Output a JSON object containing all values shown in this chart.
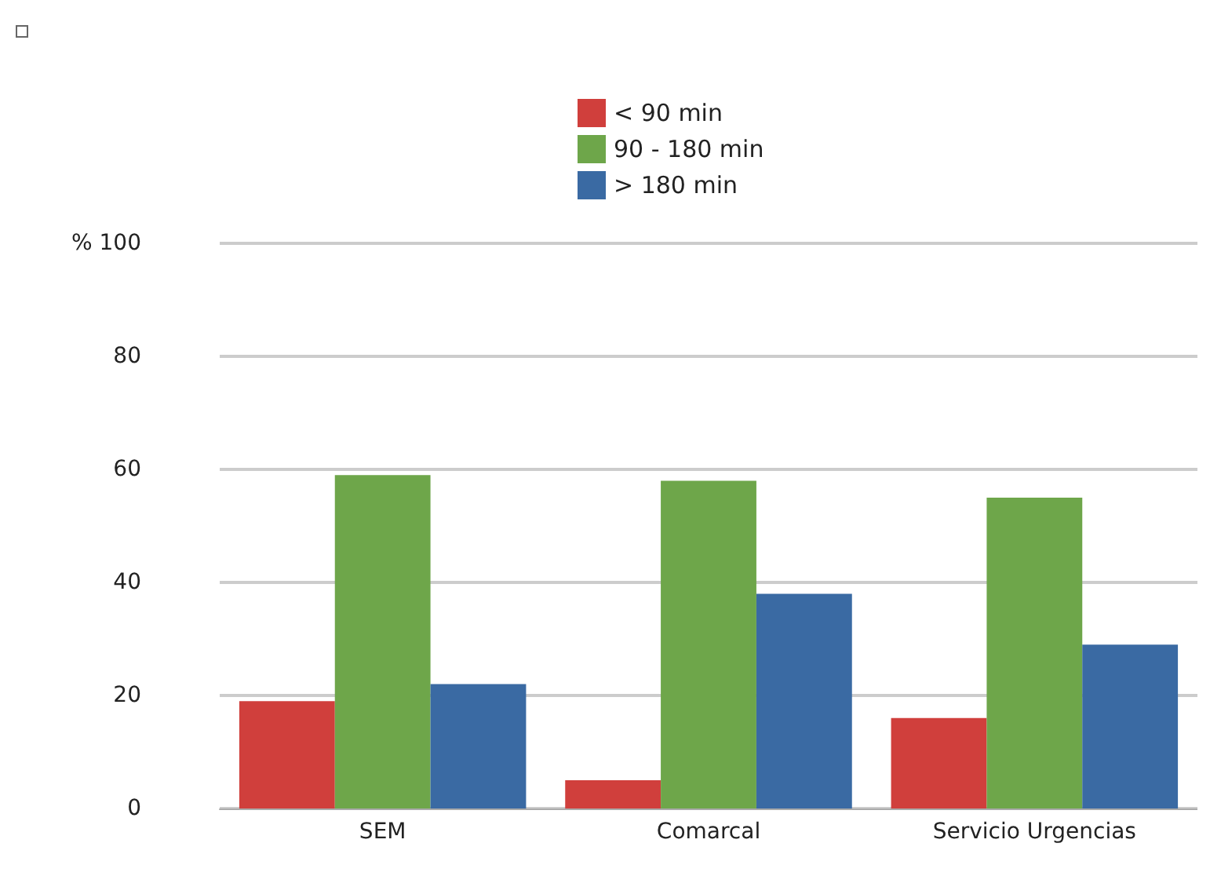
{
  "chart_data": {
    "type": "bar",
    "categories": [
      "SEM",
      "Comarcal",
      "Servicio Urgencias"
    ],
    "series": [
      {
        "name": "< 90 min",
        "color": "#d03f3c",
        "values": [
          19,
          5,
          16
        ]
      },
      {
        "name": "90 - 180 min",
        "color": "#6ea64a",
        "values": [
          59,
          58,
          55
        ]
      },
      {
        "name": "> 180 min",
        "color": "#3a6aa3",
        "values": [
          22,
          38,
          29
        ]
      }
    ],
    "ylim": [
      0,
      100
    ],
    "yticks": [
      0,
      20,
      40,
      60,
      80,
      {
        "value": 100,
        "label": "% 100"
      }
    ],
    "grid": "y",
    "legend": "top"
  }
}
